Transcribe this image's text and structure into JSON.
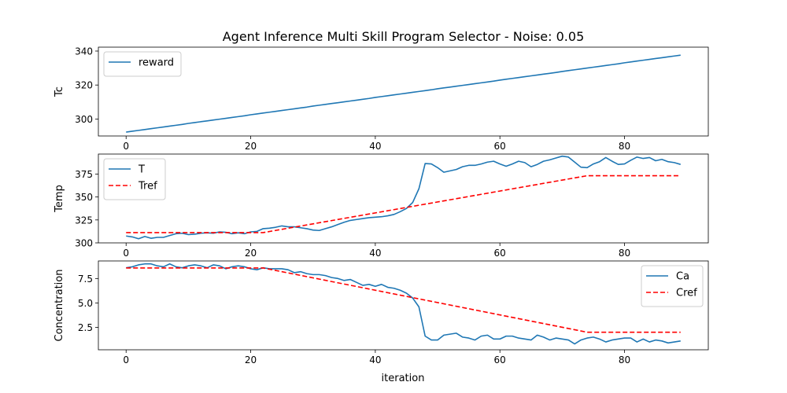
{
  "chart_data": {
    "type": "line",
    "title": "Agent Inference Multi Skill Program Selector - Noise: 0.05",
    "xlabel": "iteration",
    "x_ticks": [
      0,
      20,
      40,
      60,
      80
    ],
    "xlim": [
      -4.45,
      93.45
    ],
    "colors": {
      "blue": "#1f77b4",
      "red": "#ff0000"
    },
    "panels": [
      {
        "ylabel": "Tc",
        "ylim": [
          290.0,
          342.3
        ],
        "y_ticks": [
          300,
          320,
          340
        ],
        "legend_position": "upper left",
        "series": [
          {
            "name": "reward",
            "color": "#1f77b4",
            "dashed": false,
            "x_start": 0,
            "values": [
              292.3,
              292.8,
              293.3,
              293.8,
              294.3,
              294.8,
              295.3,
              295.8,
              296.3,
              296.8,
              297.4,
              297.9,
              298.4,
              298.9,
              299.4,
              299.9,
              300.4,
              300.9,
              301.4,
              301.9,
              302.5,
              303.0,
              303.5,
              304.0,
              304.5,
              305.0,
              305.5,
              306.0,
              306.5,
              307.0,
              307.6,
              308.1,
              308.6,
              309.1,
              309.6,
              310.1,
              310.6,
              311.1,
              311.6,
              312.1,
              312.7,
              313.2,
              313.7,
              314.2,
              314.7,
              315.2,
              315.7,
              316.2,
              316.7,
              317.2,
              317.8,
              318.3,
              318.8,
              319.3,
              319.8,
              320.3,
              320.8,
              321.3,
              321.8,
              322.3,
              322.9,
              323.4,
              323.9,
              324.4,
              324.9,
              325.4,
              325.9,
              326.4,
              326.9,
              327.4,
              328.0,
              328.5,
              329.0,
              329.5,
              330.0,
              330.5,
              331.0,
              331.5,
              332.0,
              332.5,
              333.1,
              333.6,
              334.1,
              334.6,
              335.1,
              335.6,
              336.1,
              336.6,
              337.1,
              337.6
            ]
          }
        ]
      },
      {
        "ylabel": "Temp",
        "ylim": [
          300.0,
          396.8
        ],
        "y_ticks": [
          300,
          325,
          350,
          375
        ],
        "legend_position": "upper left",
        "series": [
          {
            "name": "T",
            "color": "#1f77b4",
            "dashed": false,
            "x_start": 0,
            "values": [
              307.5,
              306.5,
              304.5,
              307.0,
              305.0,
              306.0,
              306.0,
              308.0,
              310.0,
              310.5,
              309.0,
              309.5,
              310.5,
              311.0,
              310.5,
              312.0,
              311.5,
              310.0,
              311.0,
              310.0,
              312.0,
              312.5,
              315.5,
              316.0,
              317.0,
              318.5,
              317.5,
              317.5,
              316.5,
              315.5,
              314.0,
              313.5,
              315.5,
              317.5,
              320.0,
              322.5,
              324.5,
              325.5,
              326.5,
              327.5,
              328.0,
              328.5,
              329.5,
              331.0,
              334.0,
              337.5,
              344.0,
              359.0,
              386.5,
              386.0,
              382.0,
              377.0,
              378.5,
              380.0,
              383.0,
              384.5,
              384.5,
              386.0,
              388.0,
              389.0,
              386.0,
              383.5,
              386.0,
              389.0,
              387.5,
              383.0,
              385.5,
              389.0,
              390.5,
              392.5,
              394.5,
              393.5,
              388.0,
              382.5,
              382.0,
              386.0,
              388.5,
              393.0,
              389.0,
              385.5,
              386.0,
              390.0,
              393.5,
              392.0,
              393.0,
              389.5,
              391.0,
              388.5,
              387.5,
              385.5
            ]
          },
          {
            "name": "Tref",
            "color": "#ff0000",
            "dashed": true,
            "x": [
              0,
              22,
              74,
              89
            ],
            "values": [
              311.2,
              311.2,
              373.2,
              373.2
            ]
          }
        ]
      },
      {
        "ylabel": "Concentration",
        "ylim": [
          0.2,
          9.3
        ],
        "y_ticks": [
          2.5,
          5.0,
          7.5
        ],
        "legend_position": "upper right",
        "series": [
          {
            "name": "Ca",
            "color": "#1f77b4",
            "dashed": false,
            "x_start": 0,
            "values": [
              8.6,
              8.7,
              8.9,
              9.0,
              9.0,
              8.8,
              8.7,
              9.0,
              8.7,
              8.6,
              8.8,
              8.9,
              8.8,
              8.6,
              8.9,
              8.8,
              8.5,
              8.7,
              8.8,
              8.7,
              8.5,
              8.4,
              8.6,
              8.5,
              8.5,
              8.5,
              8.4,
              8.1,
              8.2,
              8.0,
              7.9,
              7.9,
              7.8,
              7.6,
              7.5,
              7.3,
              7.4,
              7.1,
              6.8,
              6.9,
              6.7,
              6.9,
              6.6,
              6.5,
              6.3,
              6.0,
              5.5,
              4.6,
              1.6,
              1.2,
              1.2,
              1.7,
              1.8,
              1.9,
              1.5,
              1.4,
              1.2,
              1.6,
              1.7,
              1.3,
              1.3,
              1.6,
              1.6,
              1.4,
              1.3,
              1.2,
              1.7,
              1.5,
              1.2,
              1.4,
              1.3,
              1.2,
              0.8,
              1.2,
              1.4,
              1.5,
              1.3,
              1.0,
              1.2,
              1.3,
              1.4,
              1.4,
              1.0,
              1.3,
              1.0,
              1.2,
              1.1,
              0.9,
              1.0,
              1.1
            ]
          },
          {
            "name": "Cref",
            "color": "#ff0000",
            "dashed": true,
            "x": [
              0,
              22,
              74,
              89
            ],
            "values": [
              8.58,
              8.58,
              2.0,
              2.0
            ]
          }
        ]
      }
    ]
  }
}
